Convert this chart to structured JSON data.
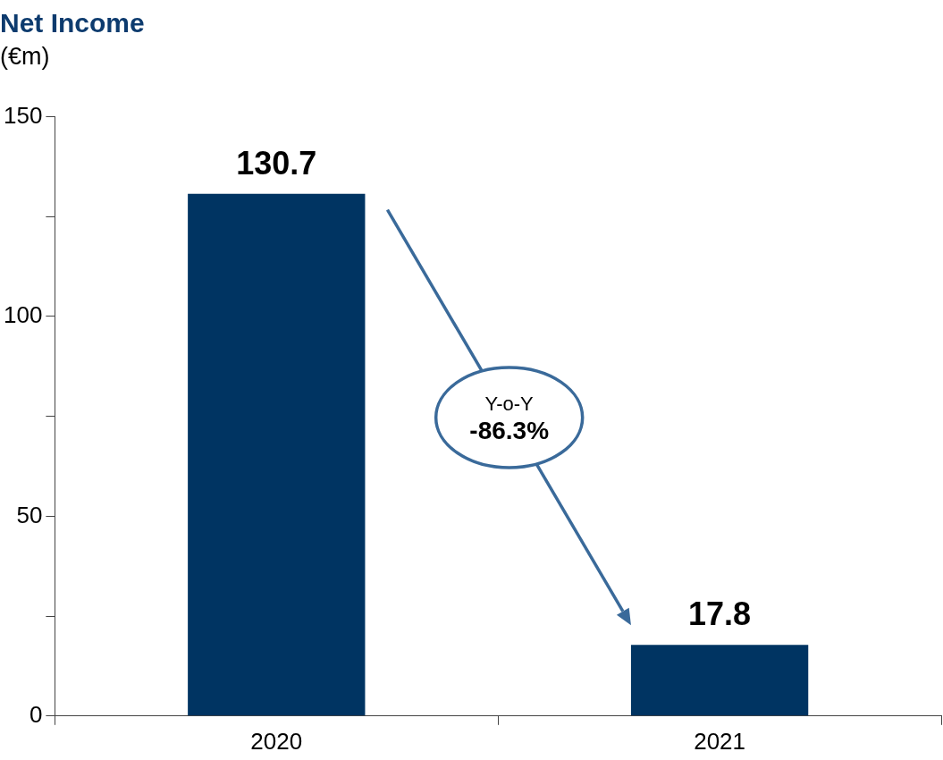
{
  "chart_data": {
    "type": "bar",
    "title": "Net Income",
    "subtitle": "(€m)",
    "categories": [
      "2020",
      "2021"
    ],
    "values": [
      130.7,
      17.8
    ],
    "color": "#003462",
    "ylim": [
      0,
      150
    ],
    "yticks": [
      0,
      {
        "value": 25,
        "label": null
      },
      50,
      {
        "value": 75,
        "label": null
      },
      100,
      {
        "value": 125,
        "label": null
      },
      150
    ],
    "data_labels": true,
    "grid": false,
    "legend": false,
    "annotations": [
      "Y-o-Y",
      "-86.3%"
    ]
  }
}
